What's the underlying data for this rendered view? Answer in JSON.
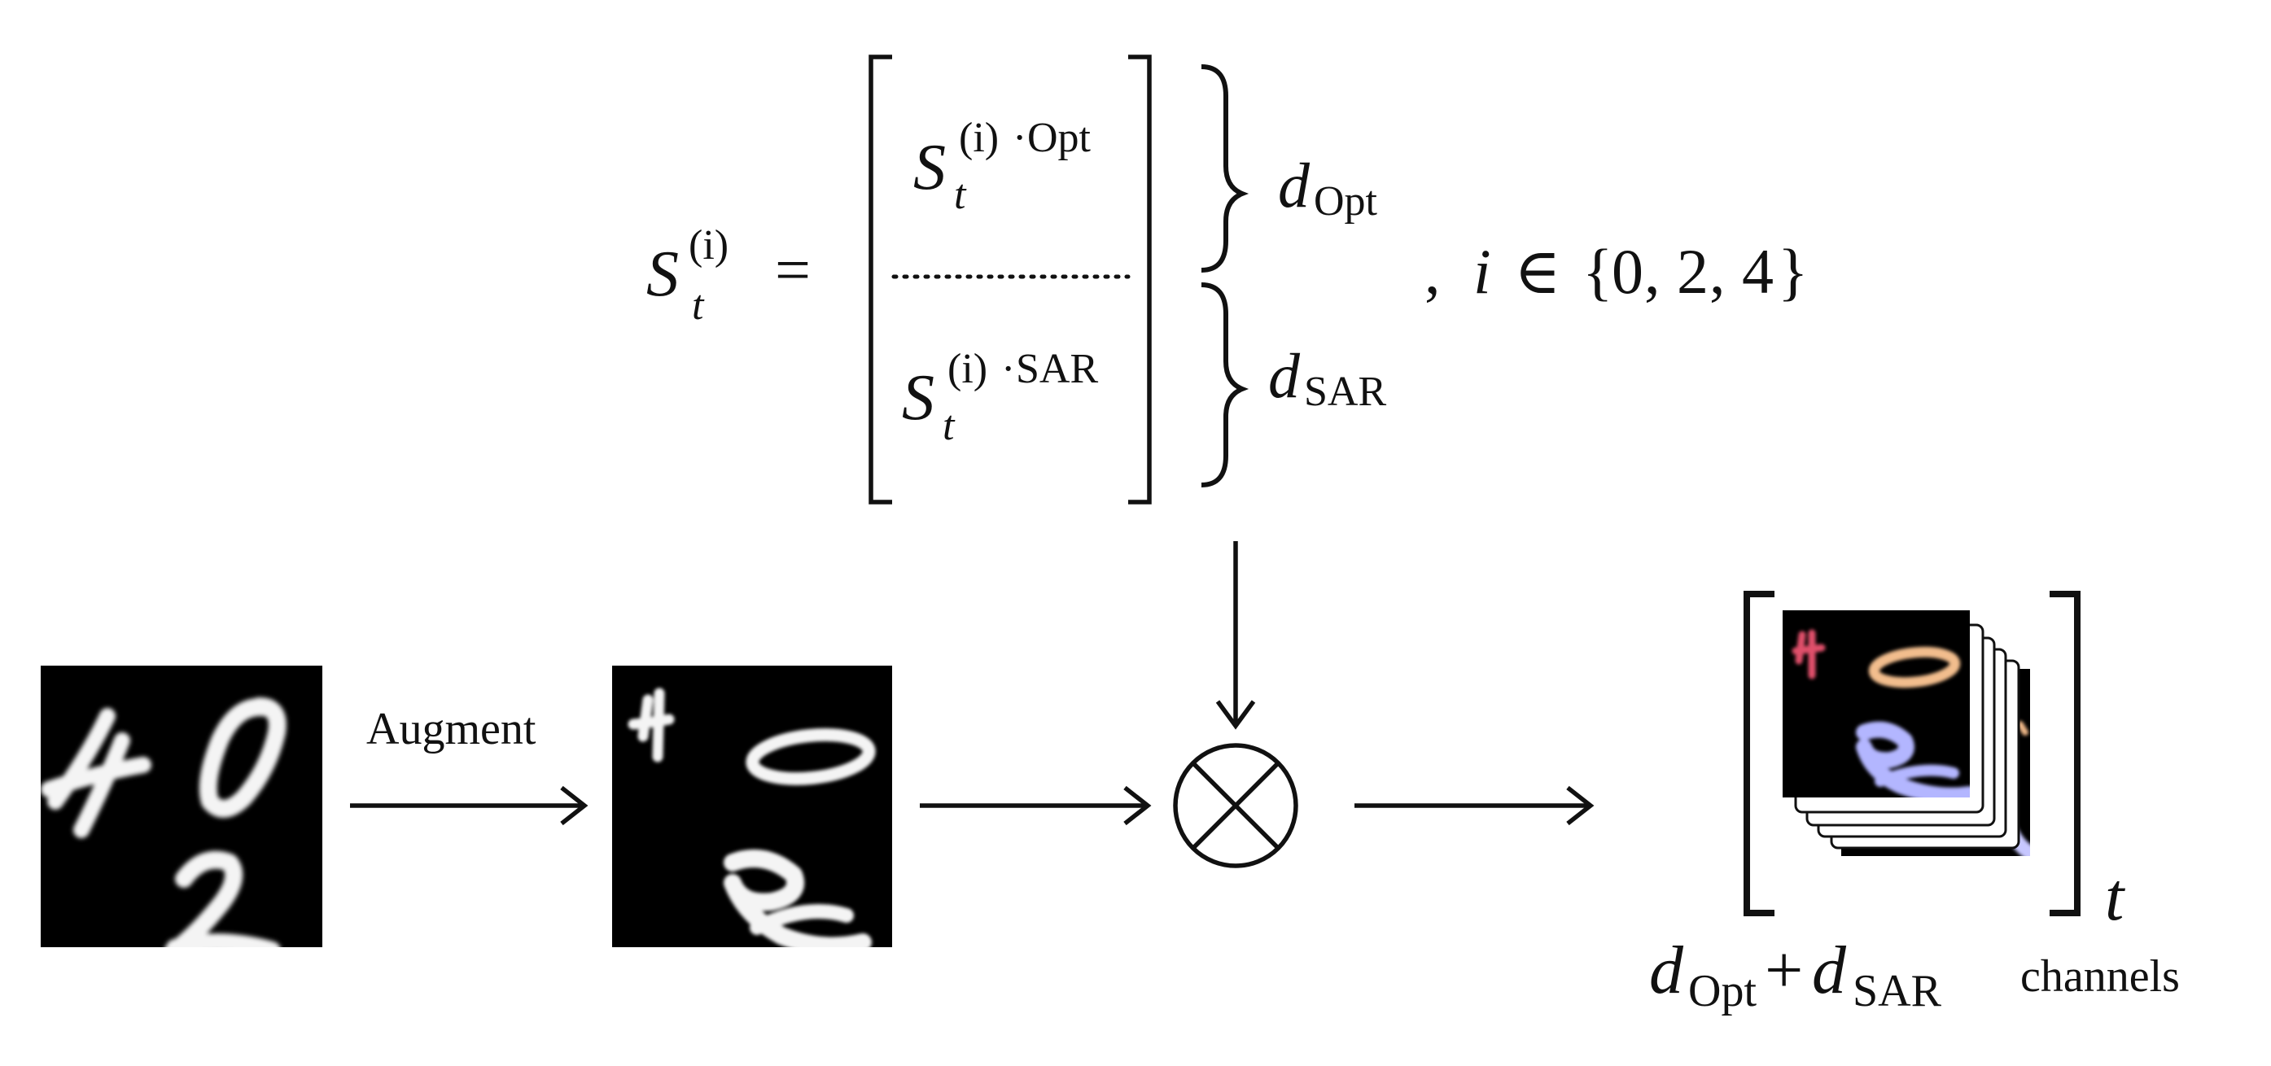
{
  "equation": {
    "lhs": {
      "base": "S",
      "sub": "t",
      "sup": "(i)"
    },
    "equals": "=",
    "top_entry": {
      "base": "S",
      "sub": "t",
      "sup": "(i)",
      "sup_dot": "·",
      "sup_label": "Opt"
    },
    "bottom_entry": {
      "base": "S",
      "sub": "t",
      "sup": "(i)",
      "sup_dot": "·",
      "sup_label": "SAR"
    },
    "brace_top_label": {
      "base": "d",
      "sub": "Opt"
    },
    "brace_bottom_label": {
      "base": "d",
      "sub": "SAR"
    },
    "index_clause": {
      "comma": ",",
      "var": "i",
      "in": "∈",
      "open": "{",
      "close": "}",
      "sep": ",",
      "values": [
        {
          "text": "0",
          "color": "#d2772c"
        },
        {
          "text": "2",
          "color": "#6f6ff0"
        },
        {
          "text": "4",
          "color": "#d43a32"
        }
      ]
    }
  },
  "flow": {
    "augment_label": "Augment",
    "operator_icon": "circled-times-icon"
  },
  "output": {
    "time_index": "t",
    "channels": {
      "d1": "d",
      "d1_sub": "Opt",
      "plus": "+",
      "d2": "d",
      "d2_sub": "SAR",
      "word": "channels"
    }
  }
}
